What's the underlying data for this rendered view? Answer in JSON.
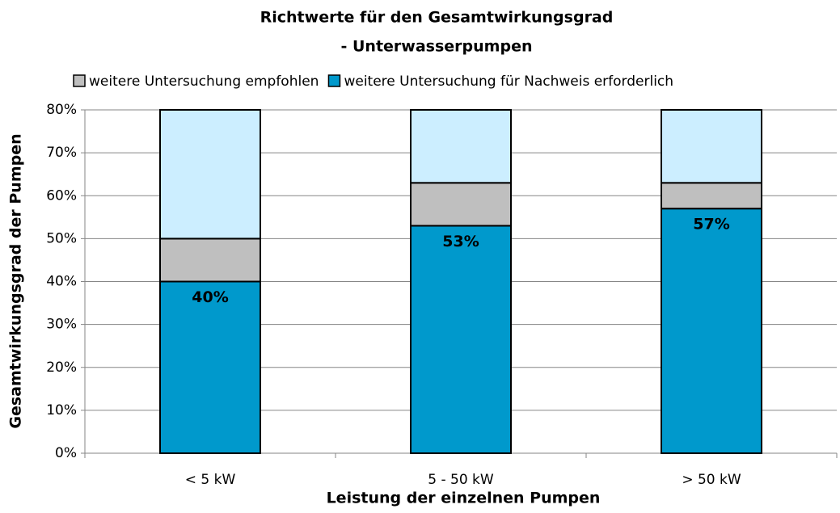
{
  "chart_data": {
    "type": "stacked_bar",
    "title": "Richtwerte für den Gesamtwirkungsgrad",
    "subtitle": "- Unterwasserpumpen",
    "x_label": "Leistung der einzelnen Pumpen",
    "y_label": "Gesamtwirkungsgrad der Pumpen",
    "categories": [
      "< 5 kW",
      "5 - 50 kW",
      "> 50 kW"
    ],
    "series": [
      {
        "name": "weitere Untersuchung für Nachweis erforderlich",
        "color": "#0099cc",
        "values": [
          40,
          53,
          57
        ],
        "value_labels": [
          "40%",
          "53%",
          "57%"
        ]
      },
      {
        "name": "weitere Untersuchung empfohlen",
        "color": "#bfbfbf",
        "values": [
          10,
          10,
          6
        ]
      },
      {
        "color": "#cceeff",
        "values": [
          30,
          17,
          17
        ]
      }
    ],
    "top_labels": [
      "50%",
      "63%",
      "63%"
    ],
    "ylim": [
      0,
      80
    ],
    "yticks": [
      {
        "value": 0,
        "label": "0%"
      },
      {
        "value": 10,
        "label": "10%"
      },
      {
        "value": 20,
        "label": "20%"
      },
      {
        "value": 30,
        "label": "30%"
      },
      {
        "value": 40,
        "label": "40%"
      },
      {
        "value": 50,
        "label": "50%"
      },
      {
        "value": 60,
        "label": "60%"
      },
      {
        "value": 70,
        "label": "70%"
      },
      {
        "value": 80,
        "label": "80%"
      }
    ],
    "grid": true
  }
}
